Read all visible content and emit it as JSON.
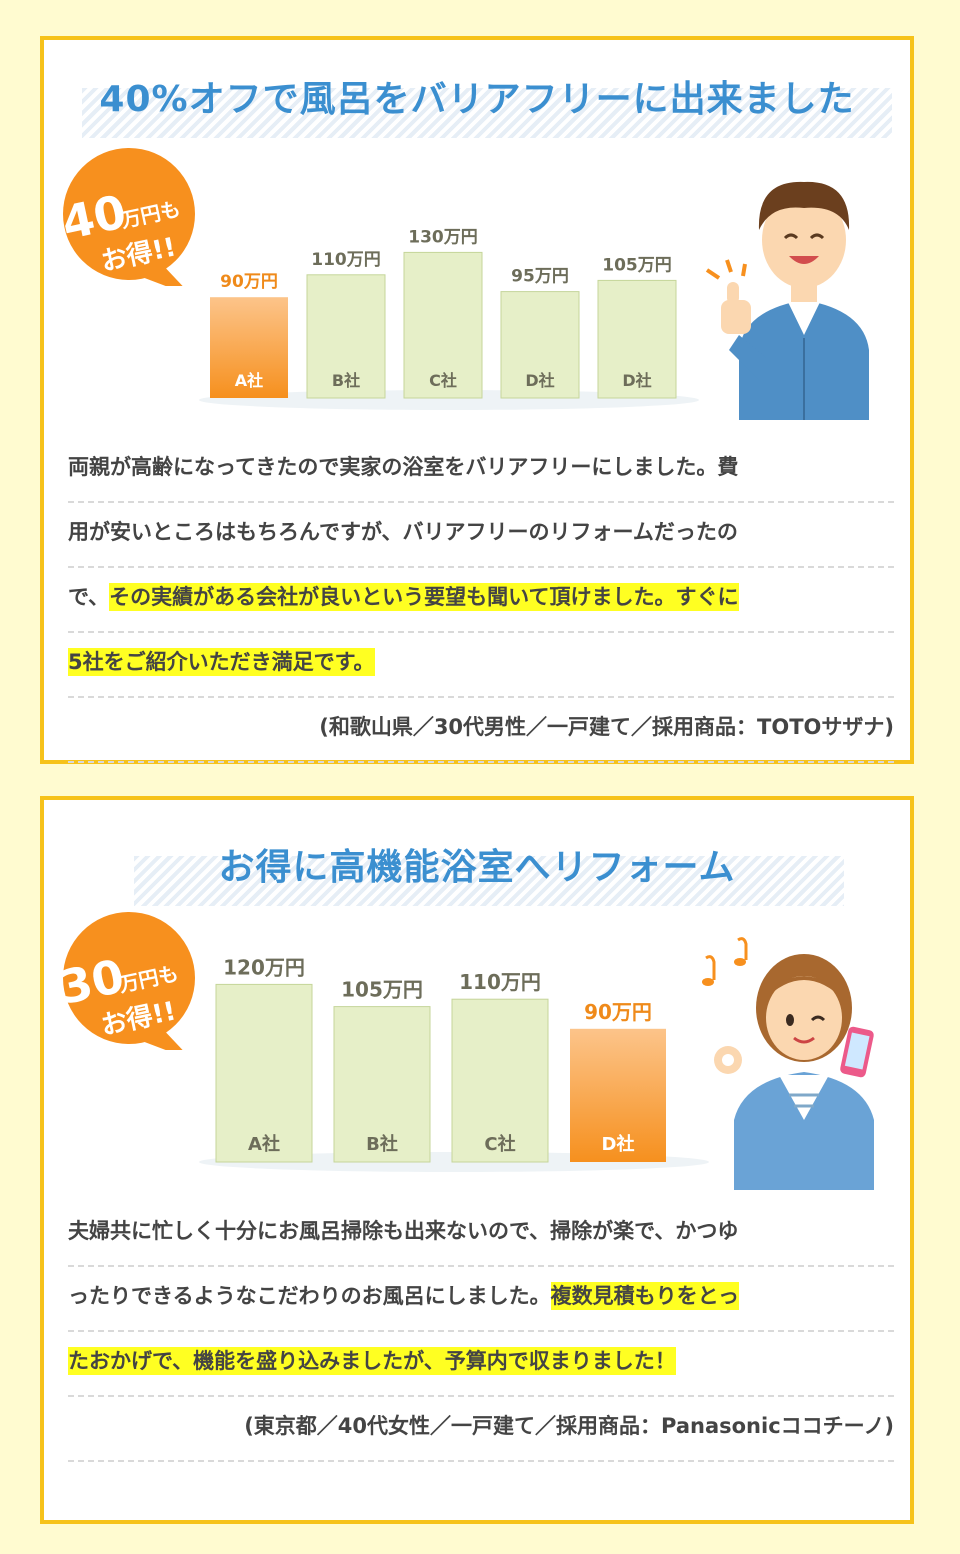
{
  "cards": [
    {
      "title": "40%オフで風呂をバリアフリーに出来ました",
      "badge": {
        "amount": "40",
        "unit": "万円も",
        "line2": "お得!!"
      },
      "text": {
        "l1": "両親が高齢になってきたので実家の浴室をバリアフリーにしました。費",
        "l2": "用が安いところはもちろんですが、バリアフリーのリフォームだったの",
        "l3_plain": "で、",
        "l3_hl": "その実績がある会社が良いという要望も聞いて頂けました。すぐに",
        "l4_hl": "5社をご紹介いただき満足です。",
        "attribution": "(和歌山県／30代男性／一戸建て／採用商品：TOTOサザナ)"
      }
    },
    {
      "title": "お得に高機能浴室へリフォーム",
      "badge": {
        "amount": "30",
        "unit": "万円も",
        "line2": "お得!!"
      },
      "text": {
        "l1": "夫婦共に忙しく十分にお風呂掃除も出来ないので、掃除が楽で、かつゆ",
        "l2_plain": "ったりできるようなこだわりのお風呂にしました。",
        "l2_hl": "複数見積もりをとっ",
        "l3_hl": "たおかげで、機能を盛り込みましたが、予算内で収まりました！",
        "attribution": "(東京都／40代女性／一戸建て／採用商品：Panasonicココチーノ)"
      }
    }
  ],
  "chart_data": [
    {
      "type": "bar",
      "categories": [
        "A社",
        "B社",
        "C社",
        "D社",
        "D社"
      ],
      "values": [
        90,
        110,
        130,
        95,
        105
      ],
      "value_labels": [
        "90万円",
        "110万円",
        "130万円",
        "95万円",
        "105万円"
      ],
      "highlight_index": 0
    },
    {
      "type": "bar",
      "categories": [
        "A社",
        "B社",
        "C社",
        "D社"
      ],
      "values": [
        120,
        105,
        110,
        90
      ],
      "value_labels": [
        "120万円",
        "105万円",
        "110万円",
        "90万円"
      ],
      "highlight_index": 3
    }
  ],
  "colors": {
    "border": "#f6c21a",
    "title": "#3b8fd0",
    "bar_normal": "#e6efc8",
    "bar_normal_border": "#c5d59a",
    "bar_highlight_top": "#fcc48a",
    "bar_highlight_bottom": "#f6901e",
    "label_normal": "#6d6d5a",
    "label_highlight": "#ef8a1a",
    "badge": "#f7901e",
    "highlight_bg": "#ffff22"
  }
}
